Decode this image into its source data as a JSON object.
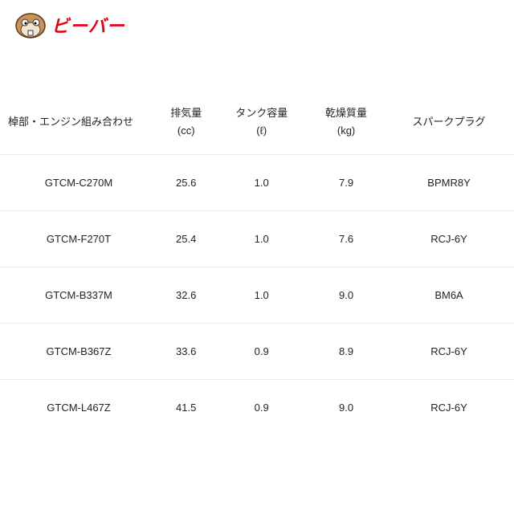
{
  "logo": {
    "text": "ビーバー",
    "brand_color": "#e60012",
    "icon": "beaver-mascot-icon"
  },
  "table": {
    "headers": [
      {
        "label": "棹部・エンジン組み合わせ",
        "unit": ""
      },
      {
        "label": "排気量",
        "unit": "(cc)"
      },
      {
        "label": "タンク容量",
        "unit": "(ℓ)"
      },
      {
        "label": "乾燥質量",
        "unit": "(kg)"
      },
      {
        "label": "スパークプラグ",
        "unit": ""
      }
    ],
    "rows": [
      [
        "GTCM-C270M",
        "25.6",
        "1.0",
        "7.9",
        "BPMR8Y"
      ],
      [
        "GTCM-F270T",
        "25.4",
        "1.0",
        "7.6",
        "RCJ-6Y"
      ],
      [
        "GTCM-B337M",
        "32.6",
        "1.0",
        "9.0",
        "BM6A"
      ],
      [
        "GTCM-B367Z",
        "33.6",
        "0.9",
        "8.9",
        "RCJ-6Y"
      ],
      [
        "GTCM-L467Z",
        "41.5",
        "0.9",
        "9.0",
        "RCJ-6Y"
      ]
    ]
  }
}
